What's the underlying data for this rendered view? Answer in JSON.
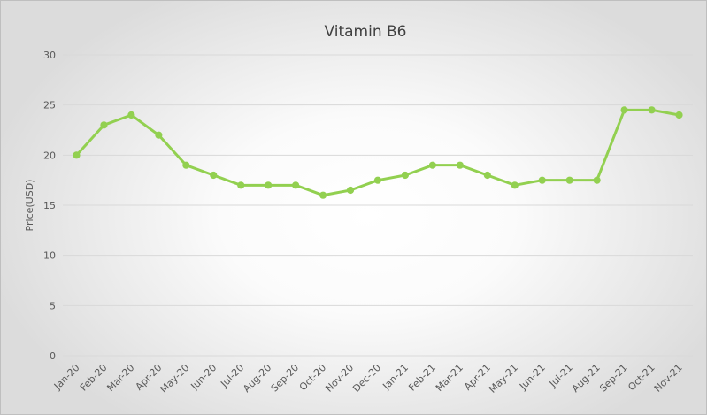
{
  "chart_data": {
    "type": "line",
    "title": "Vitamin B6",
    "xlabel": "",
    "ylabel": "Price(USD)",
    "ylim": [
      0,
      30
    ],
    "yticks": [
      0,
      5,
      10,
      15,
      20,
      25,
      30
    ],
    "grid": true,
    "legend": "none",
    "categories": [
      "Jan-20",
      "Feb-20",
      "Mar-20",
      "Apr-20",
      "May-20",
      "Jun-20",
      "Jul-20",
      "Aug-20",
      "Sep-20",
      "Oct-20",
      "Nov-20",
      "Dec-20",
      "Jan-21",
      "Feb-21",
      "Mar-21",
      "Apr-21",
      "May-21",
      "Jun-21",
      "Jul-21",
      "Aug-21",
      "Sep-21",
      "Oct-21",
      "Nov-21"
    ],
    "series": [
      {
        "name": "Vitamin B6",
        "color": "#92d050",
        "values": [
          20,
          23,
          24,
          22,
          19,
          18,
          17,
          17,
          17,
          16,
          16.5,
          17.5,
          18,
          19,
          19,
          18,
          17,
          17.5,
          17.5,
          17.5,
          24.5,
          24.5,
          24
        ]
      }
    ]
  }
}
